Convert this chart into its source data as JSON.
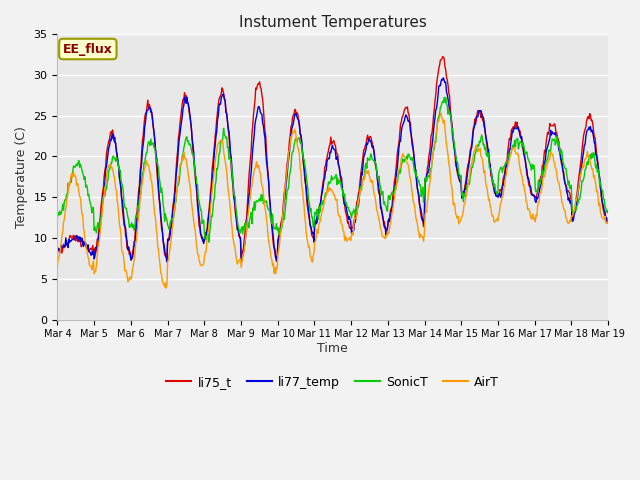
{
  "title": "Instument Temperatures",
  "xlabel": "Time",
  "ylabel": "Temperature (C)",
  "ylim": [
    0,
    35
  ],
  "annotation": "EE_flux",
  "legend": [
    "li75_t",
    "li77_temp",
    "SonicT",
    "AirT"
  ],
  "colors": {
    "li75_t": "#dd0000",
    "li77_temp": "#0000dd",
    "SonicT": "#00cc00",
    "AirT": "#ff9900"
  },
  "axes_background": "#e8e8e8",
  "xticklabels": [
    "Mar 4",
    "Mar 5",
    "Mar 6",
    "Mar 7",
    "Mar 8",
    "Mar 9",
    "Mar 10",
    "Mar 11",
    "Mar 12",
    "Mar 13",
    "Mar 14",
    "Mar 15",
    "Mar 16",
    "Mar 17",
    "Mar 18",
    "Mar 19"
  ],
  "n_days": 15,
  "n_per_day": 48,
  "peaks_li75": [
    10,
    23,
    26.5,
    27.5,
    28,
    29,
    25.5,
    22,
    22.5,
    26,
    32,
    25.5,
    24,
    24,
    25
  ],
  "mins_li75": [
    8.5,
    8,
    7.5,
    9.5,
    10,
    7.5,
    10,
    11.5,
    11,
    12,
    17,
    15,
    15,
    15,
    12
  ],
  "peaks_li77": [
    10,
    22.5,
    26,
    27,
    27.5,
    26,
    25,
    21,
    22,
    25,
    29.5,
    25.5,
    23.5,
    23,
    23.5
  ],
  "mins_li77": [
    8.5,
    8,
    7.5,
    9.5,
    10,
    7.5,
    10,
    12,
    10.5,
    12,
    17,
    15,
    15,
    14.5,
    12
  ],
  "peaks_sonic": [
    19,
    20,
    22,
    22,
    22.5,
    15,
    22.5,
    17.5,
    20,
    20,
    27,
    22,
    22,
    22,
    20
  ],
  "mins_sonic": [
    13,
    11,
    11.5,
    11.5,
    10,
    11,
    11,
    13,
    13,
    15,
    17,
    15,
    18,
    16,
    13
  ],
  "peaks_air": [
    18,
    19,
    19,
    20,
    22,
    19,
    23,
    16,
    18,
    20,
    25,
    21,
    21,
    20,
    20
  ],
  "mins_air": [
    6.5,
    5,
    4,
    6.5,
    7,
    6,
    7.5,
    9.5,
    10,
    10,
    12,
    12,
    12.5,
    12,
    12
  ],
  "phase_li75": 0.1,
  "phase_li77": 0.0,
  "phase_sonic": -0.3,
  "phase_air": 0.4
}
